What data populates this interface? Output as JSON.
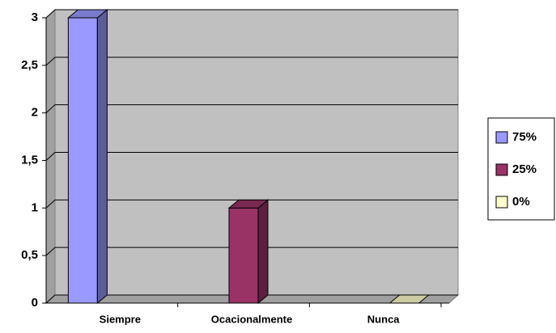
{
  "chart_data": {
    "type": "bar3d",
    "categories": [
      "Siempre",
      "Ocacionalmente",
      "Nunca"
    ],
    "series": [
      {
        "name": "75%",
        "color": "#9999ff",
        "values": [
          3,
          null,
          null
        ]
      },
      {
        "name": "25%",
        "color": "#993366",
        "values": [
          null,
          1,
          null
        ]
      },
      {
        "name": "0%",
        "color": "#ffffcc",
        "values": [
          null,
          null,
          0
        ]
      }
    ],
    "ylim": [
      0,
      3
    ],
    "yticks": [
      0,
      {
        "value": 0.5,
        "label": "0,5"
      },
      1,
      {
        "value": 1.5,
        "label": "1,5"
      },
      2,
      {
        "value": 2.5,
        "label": "2,5"
      },
      3
    ],
    "grid": true,
    "legend": "right"
  }
}
